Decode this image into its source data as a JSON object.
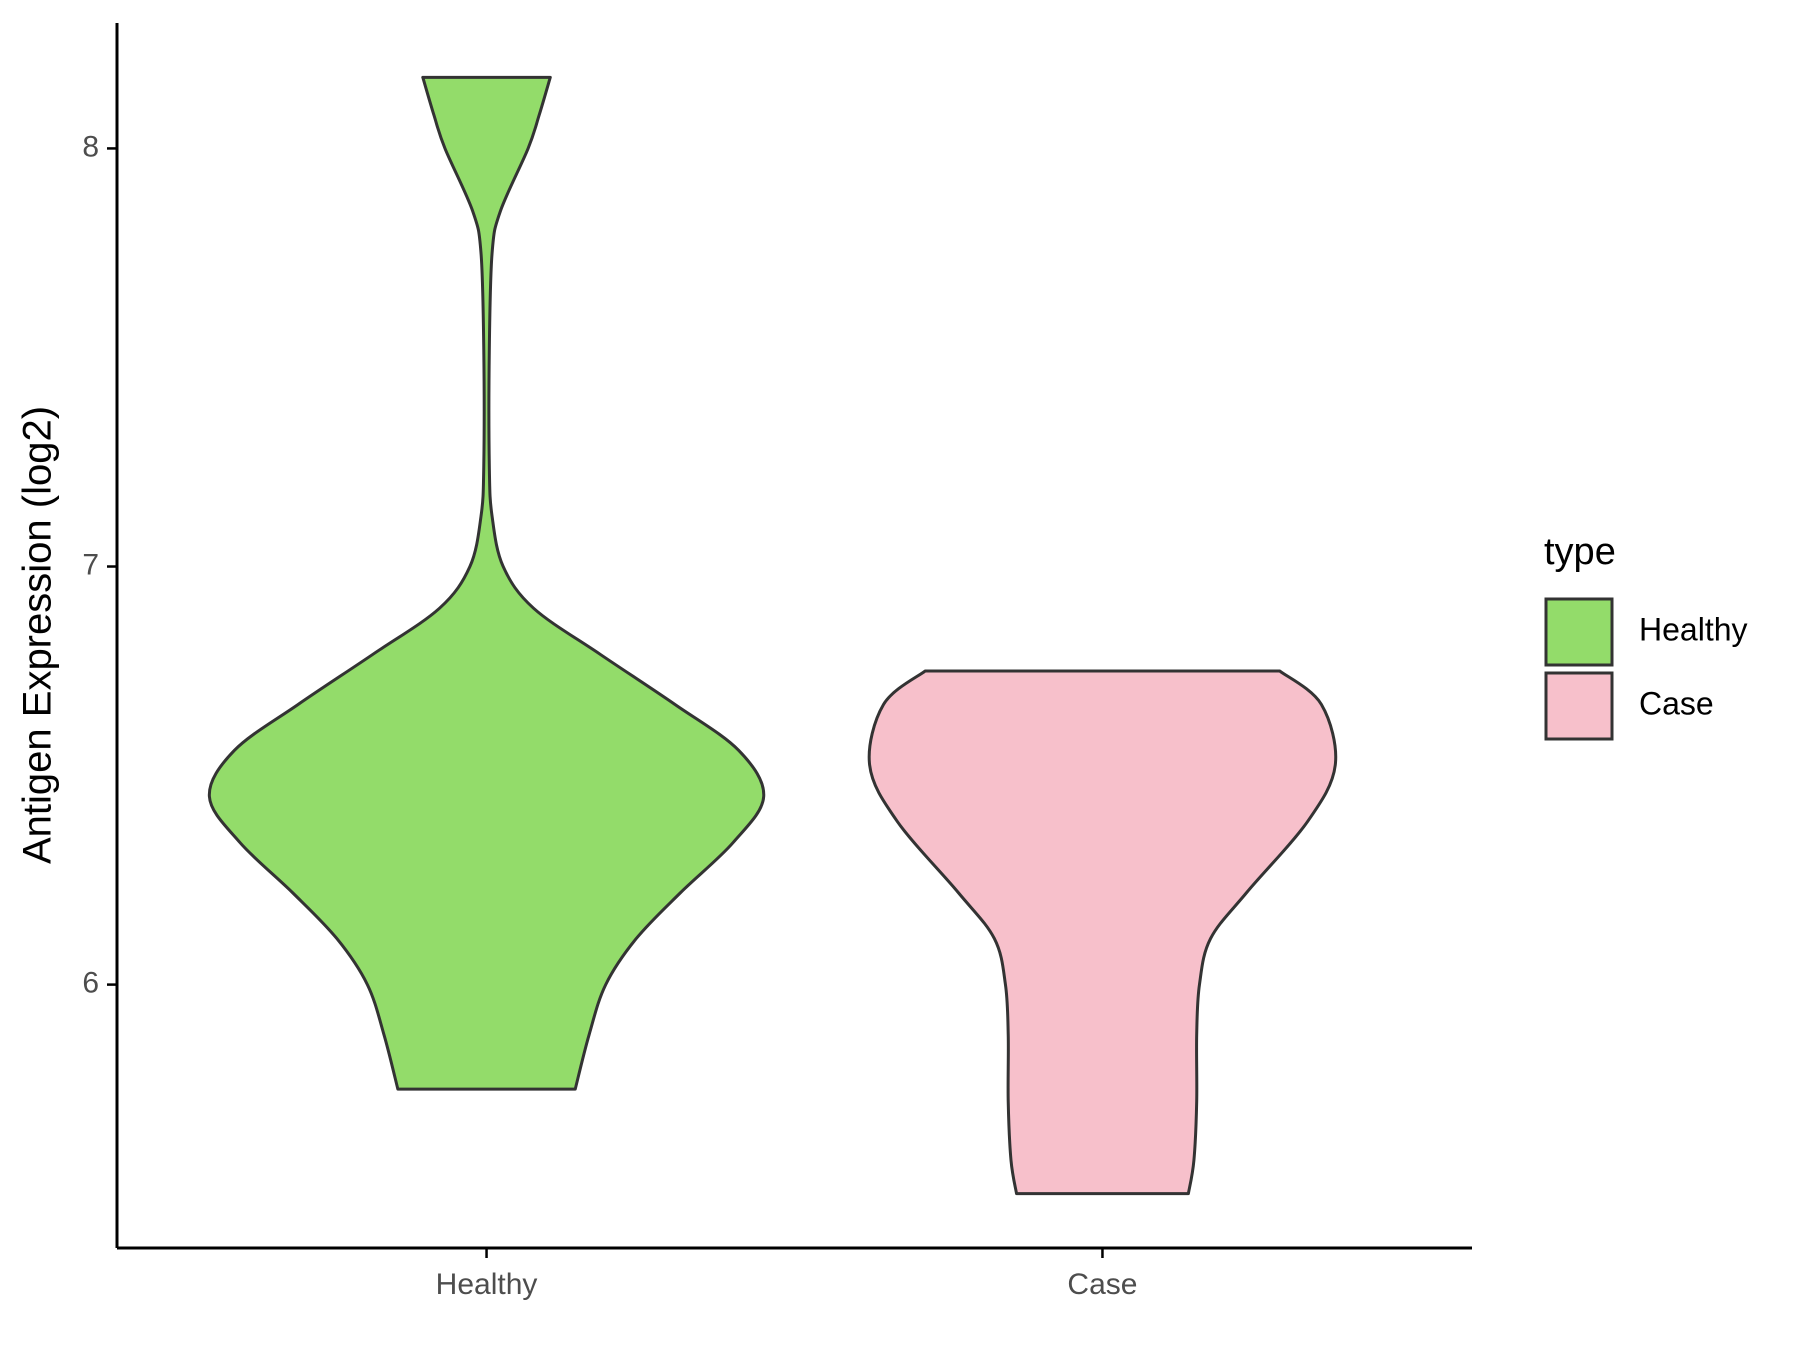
{
  "chart_data": {
    "type": "violin",
    "y_label": "Antigen Expression (log2)",
    "categories": [
      "Healthy",
      "Case"
    ],
    "series": [
      {
        "name": "Healthy",
        "color": "#93dc6a",
        "y": [
          8.17,
          8.08,
          8.0,
          7.85,
          7.75,
          7.52,
          7.24,
          7.12,
          7.0,
          6.9,
          6.79,
          6.67,
          6.56,
          6.45,
          6.34,
          6.22,
          6.11,
          6.0,
          5.88,
          5.75
        ],
        "widths": [
          0.23,
          0.19,
          0.15,
          0.05,
          0.02,
          0.01,
          0.01,
          0.02,
          0.06,
          0.17,
          0.41,
          0.68,
          0.91,
          1.0,
          0.89,
          0.7,
          0.54,
          0.43,
          0.37,
          0.32
        ]
      },
      {
        "name": "Case",
        "color": "#f7c0cb",
        "y": [
          6.75,
          6.67,
          6.525,
          6.39,
          6.22,
          6.11,
          6.0,
          5.88,
          5.72,
          5.58,
          5.5
        ],
        "widths": [
          0.64,
          0.79,
          0.84,
          0.74,
          0.52,
          0.39,
          0.35,
          0.34,
          0.34,
          0.33,
          0.31
        ]
      }
    ],
    "ylim": [
      5.37,
      8.3
    ],
    "yticks": [
      6,
      7,
      8
    ],
    "legend_title": "type",
    "legend_position": "right"
  }
}
